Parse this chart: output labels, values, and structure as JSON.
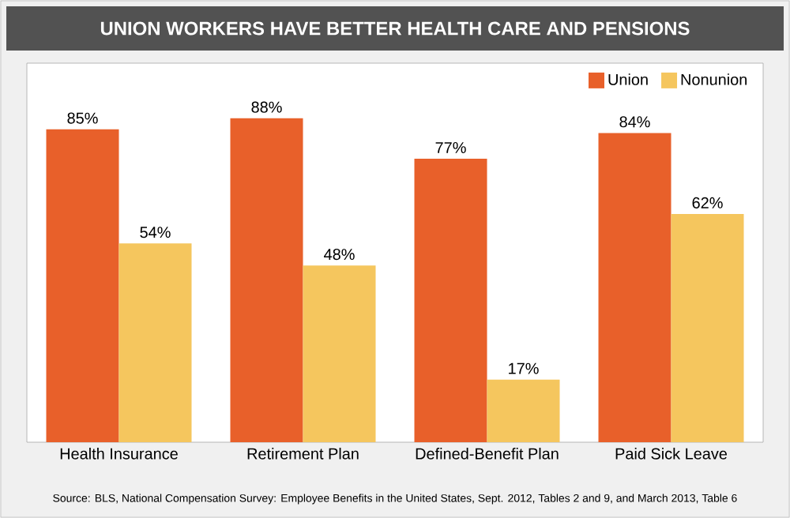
{
  "chart_data": {
    "type": "bar",
    "title": "UNION WORKERS HAVE BETTER HEALTH CARE AND PENSIONS",
    "categories": [
      "Health Insurance",
      "Retirement Plan",
      "Defined-Benefit Plan",
      "Paid Sick Leave"
    ],
    "series": [
      {
        "name": "Union",
        "color": "#e8602a",
        "values": [
          85,
          88,
          77,
          84
        ],
        "value_labels": [
          "85%",
          "88%",
          "77%",
          "84%"
        ]
      },
      {
        "name": "Nonunion",
        "color": "#f5c65e",
        "values": [
          54,
          48,
          17,
          62
        ],
        "value_labels": [
          "54%",
          "48%",
          "17%",
          "62%"
        ]
      }
    ],
    "legend": "top right",
    "annotations": [
      "Source: BLS, National Compensation Survey: Employee Benefits in the United States, Sept. 2012, Tables 2 and 9, and March 2013, Table 6"
    ]
  }
}
